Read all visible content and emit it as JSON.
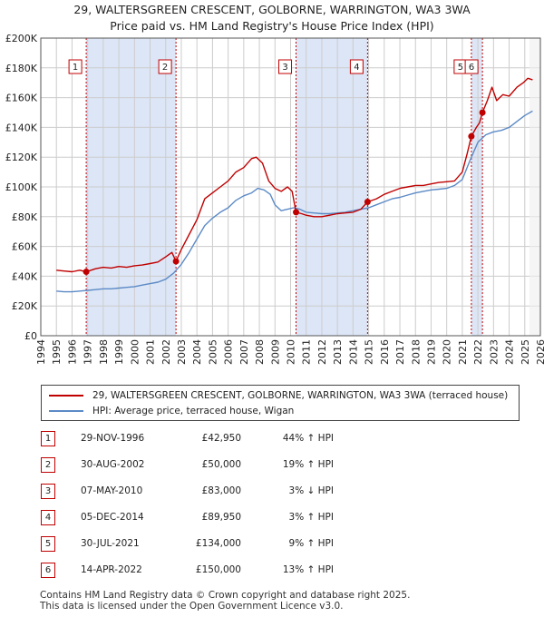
{
  "title": {
    "line1": "29, WALTERSGREEN CRESCENT, GOLBORNE, WARRINGTON, WA3 3WA",
    "line2": "Price paid vs. HM Land Registry's House Price Index (HPI)"
  },
  "colors": {
    "property": "#c00000",
    "hpi": "#5b8ac6",
    "shade": "#dde6f6",
    "marker_border": "#c00000"
  },
  "chart_data": {
    "type": "line",
    "x_range": [
      1994,
      2026
    ],
    "ylim": [
      0,
      200000
    ],
    "y_ticks": [
      0,
      20000,
      40000,
      60000,
      80000,
      100000,
      120000,
      140000,
      160000,
      180000,
      200000
    ],
    "y_tick_labels": [
      "£0",
      "£20K",
      "£40K",
      "£60K",
      "£80K",
      "£100K",
      "£120K",
      "£140K",
      "£160K",
      "£180K",
      "£200K"
    ],
    "x_ticks": [
      "1994",
      "1995",
      "1996",
      "1997",
      "1998",
      "1999",
      "2000",
      "2001",
      "2002",
      "2003",
      "2004",
      "2005",
      "2006",
      "2007",
      "2008",
      "2009",
      "2010",
      "2011",
      "2012",
      "2013",
      "2014",
      "2015",
      "2016",
      "2017",
      "2018",
      "2019",
      "2020",
      "2021",
      "2022",
      "2023",
      "2024",
      "2025",
      "2026"
    ],
    "shaded_periods": [
      [
        1996.91,
        2002.66
      ],
      [
        2010.35,
        2014.93
      ],
      [
        2021.58,
        2022.29
      ]
    ],
    "series": [
      {
        "name": "29, WALTERSGREEN CRESCENT, GOLBORNE, WARRINGTON, WA3 3WA (terraced house)",
        "x": [
          1995,
          1995.5,
          1996,
          1996.5,
          1996.91,
          1997.5,
          1998,
          1998.5,
          1999,
          1999.5,
          2000,
          2000.5,
          2001,
          2001.5,
          2002,
          2002.4,
          2002.66,
          2003,
          2003.5,
          2004,
          2004.5,
          2005,
          2005.5,
          2006,
          2006.5,
          2007,
          2007.5,
          2007.8,
          2008.2,
          2008.6,
          2009,
          2009.4,
          2009.8,
          2010.1,
          2010.35,
          2010.7,
          2011,
          2011.5,
          2012,
          2012.5,
          2013,
          2013.5,
          2014,
          2014.5,
          2014.93,
          2015.5,
          2016,
          2016.5,
          2017,
          2017.5,
          2018,
          2018.5,
          2019,
          2019.5,
          2020,
          2020.5,
          2021,
          2021.3,
          2021.58,
          2021.9,
          2022.1,
          2022.29,
          2022.6,
          2022.9,
          2023.2,
          2023.6,
          2024,
          2024.5,
          2024.9,
          2025.2,
          2025.5
        ],
        "values": [
          44000,
          43500,
          43000,
          44000,
          42950,
          45000,
          46000,
          45500,
          46500,
          46000,
          47000,
          47500,
          48500,
          49500,
          53000,
          56000,
          50000,
          58000,
          68000,
          78000,
          92000,
          96000,
          100000,
          104000,
          110000,
          113000,
          119000,
          120000,
          116000,
          104000,
          99000,
          97000,
          100000,
          97000,
          83000,
          82000,
          81000,
          80000,
          80000,
          81000,
          82000,
          82500,
          83000,
          85000,
          89950,
          92000,
          95000,
          97000,
          99000,
          100000,
          101000,
          101000,
          102000,
          103000,
          103500,
          104000,
          110000,
          122000,
          134000,
          140000,
          143000,
          150000,
          158000,
          167000,
          158000,
          162000,
          161000,
          167000,
          170000,
          173000,
          172000
        ]
      },
      {
        "name": "HPI: Average price, terraced house, Wigan",
        "x": [
          1995,
          1995.5,
          1996,
          1996.5,
          1997,
          1997.5,
          1998,
          1998.5,
          1999,
          1999.5,
          2000,
          2000.5,
          2001,
          2001.5,
          2002,
          2002.5,
          2003,
          2003.5,
          2004,
          2004.5,
          2005,
          2005.5,
          2006,
          2006.5,
          2007,
          2007.5,
          2007.9,
          2008.3,
          2008.7,
          2009,
          2009.4,
          2009.8,
          2010.2,
          2010.6,
          2011,
          2011.5,
          2012,
          2012.5,
          2013,
          2013.5,
          2014,
          2014.5,
          2015,
          2015.5,
          2016,
          2016.5,
          2017,
          2017.5,
          2018,
          2018.5,
          2019,
          2019.5,
          2020,
          2020.5,
          2021,
          2021.5,
          2022,
          2022.5,
          2023,
          2023.5,
          2024,
          2024.5,
          2025,
          2025.5
        ],
        "values": [
          30000,
          29500,
          29500,
          30000,
          30500,
          31000,
          31500,
          31500,
          32000,
          32500,
          33000,
          34000,
          35000,
          36000,
          38000,
          42000,
          48000,
          56000,
          65000,
          74000,
          79000,
          83000,
          86000,
          91000,
          94000,
          96000,
          99000,
          98000,
          95000,
          88000,
          84000,
          85000,
          86000,
          85000,
          83000,
          82500,
          82000,
          82000,
          82500,
          83000,
          84000,
          85000,
          86000,
          88000,
          90000,
          92000,
          93000,
          94500,
          96000,
          97000,
          98000,
          98500,
          99000,
          101000,
          105000,
          118000,
          130000,
          135000,
          137000,
          138000,
          140000,
          144000,
          148000,
          151000
        ]
      }
    ],
    "sales": [
      {
        "n": "1",
        "x": 1996.91,
        "price": 42950
      },
      {
        "n": "2",
        "x": 2002.66,
        "price": 50000
      },
      {
        "n": "3",
        "x": 2010.35,
        "price": 83000
      },
      {
        "n": "4",
        "x": 2014.93,
        "price": 89950
      },
      {
        "n": "5",
        "x": 2021.58,
        "price": 134000
      },
      {
        "n": "6",
        "x": 2022.29,
        "price": 150000
      }
    ]
  },
  "legend": {
    "property": "29, WALTERSGREEN CRESCENT, GOLBORNE, WARRINGTON, WA3 3WA (terraced house)",
    "hpi": "HPI: Average price, terraced house, Wigan"
  },
  "table": [
    {
      "n": "1",
      "date": "29-NOV-1996",
      "price": "£42,950",
      "pct": "44% ↑ HPI"
    },
    {
      "n": "2",
      "date": "30-AUG-2002",
      "price": "£50,000",
      "pct": "19% ↑ HPI"
    },
    {
      "n": "3",
      "date": "07-MAY-2010",
      "price": "£83,000",
      "pct": "3% ↓ HPI"
    },
    {
      "n": "4",
      "date": "05-DEC-2014",
      "price": "£89,950",
      "pct": "3% ↑ HPI"
    },
    {
      "n": "5",
      "date": "30-JUL-2021",
      "price": "£134,000",
      "pct": "9% ↑ HPI"
    },
    {
      "n": "6",
      "date": "14-APR-2022",
      "price": "£150,000",
      "pct": "13% ↑ HPI"
    }
  ],
  "footer": {
    "line1": "Contains HM Land Registry data © Crown copyright and database right 2025.",
    "line2": "This data is licensed under the Open Government Licence v3.0."
  }
}
